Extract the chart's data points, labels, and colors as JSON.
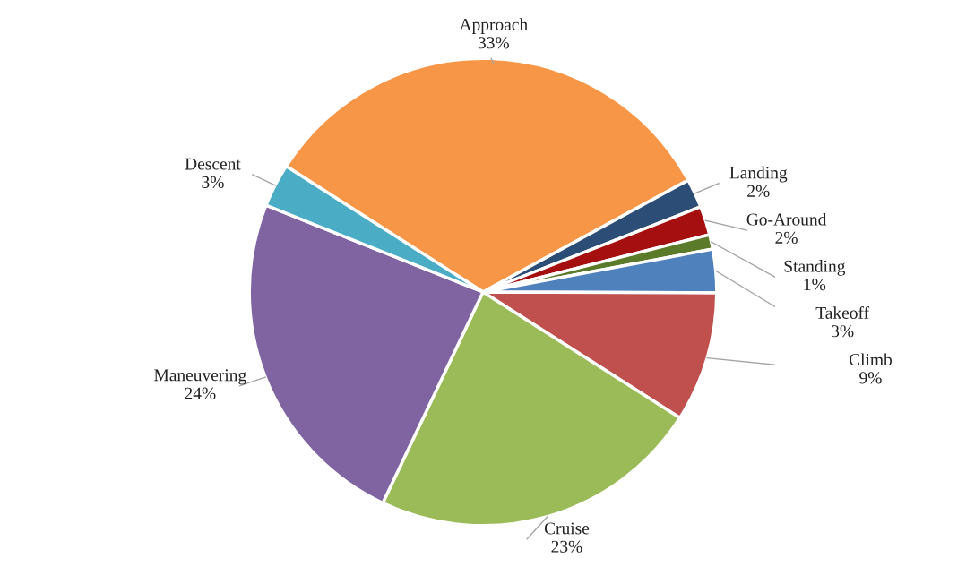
{
  "chart_data": {
    "type": "pie",
    "categories": [
      "Approach",
      "Landing",
      "Go-Around",
      "Standing",
      "Takeoff",
      "Climb",
      "Cruise",
      "Maneuvering",
      "Descent"
    ],
    "values": [
      33,
      2,
      2,
      1,
      3,
      9,
      23,
      24,
      3
    ],
    "value_labels": [
      "33%",
      "2%",
      "2%",
      "1%",
      "3%",
      "9%",
      "23%",
      "24%",
      "3%"
    ],
    "colors": [
      "#f79646",
      "#2c4d75",
      "#a50f0f",
      "#5b7b2a",
      "#4f81bd",
      "#c0504d",
      "#9bbb59",
      "#8064a2",
      "#4bacc6"
    ],
    "legend": false
  }
}
